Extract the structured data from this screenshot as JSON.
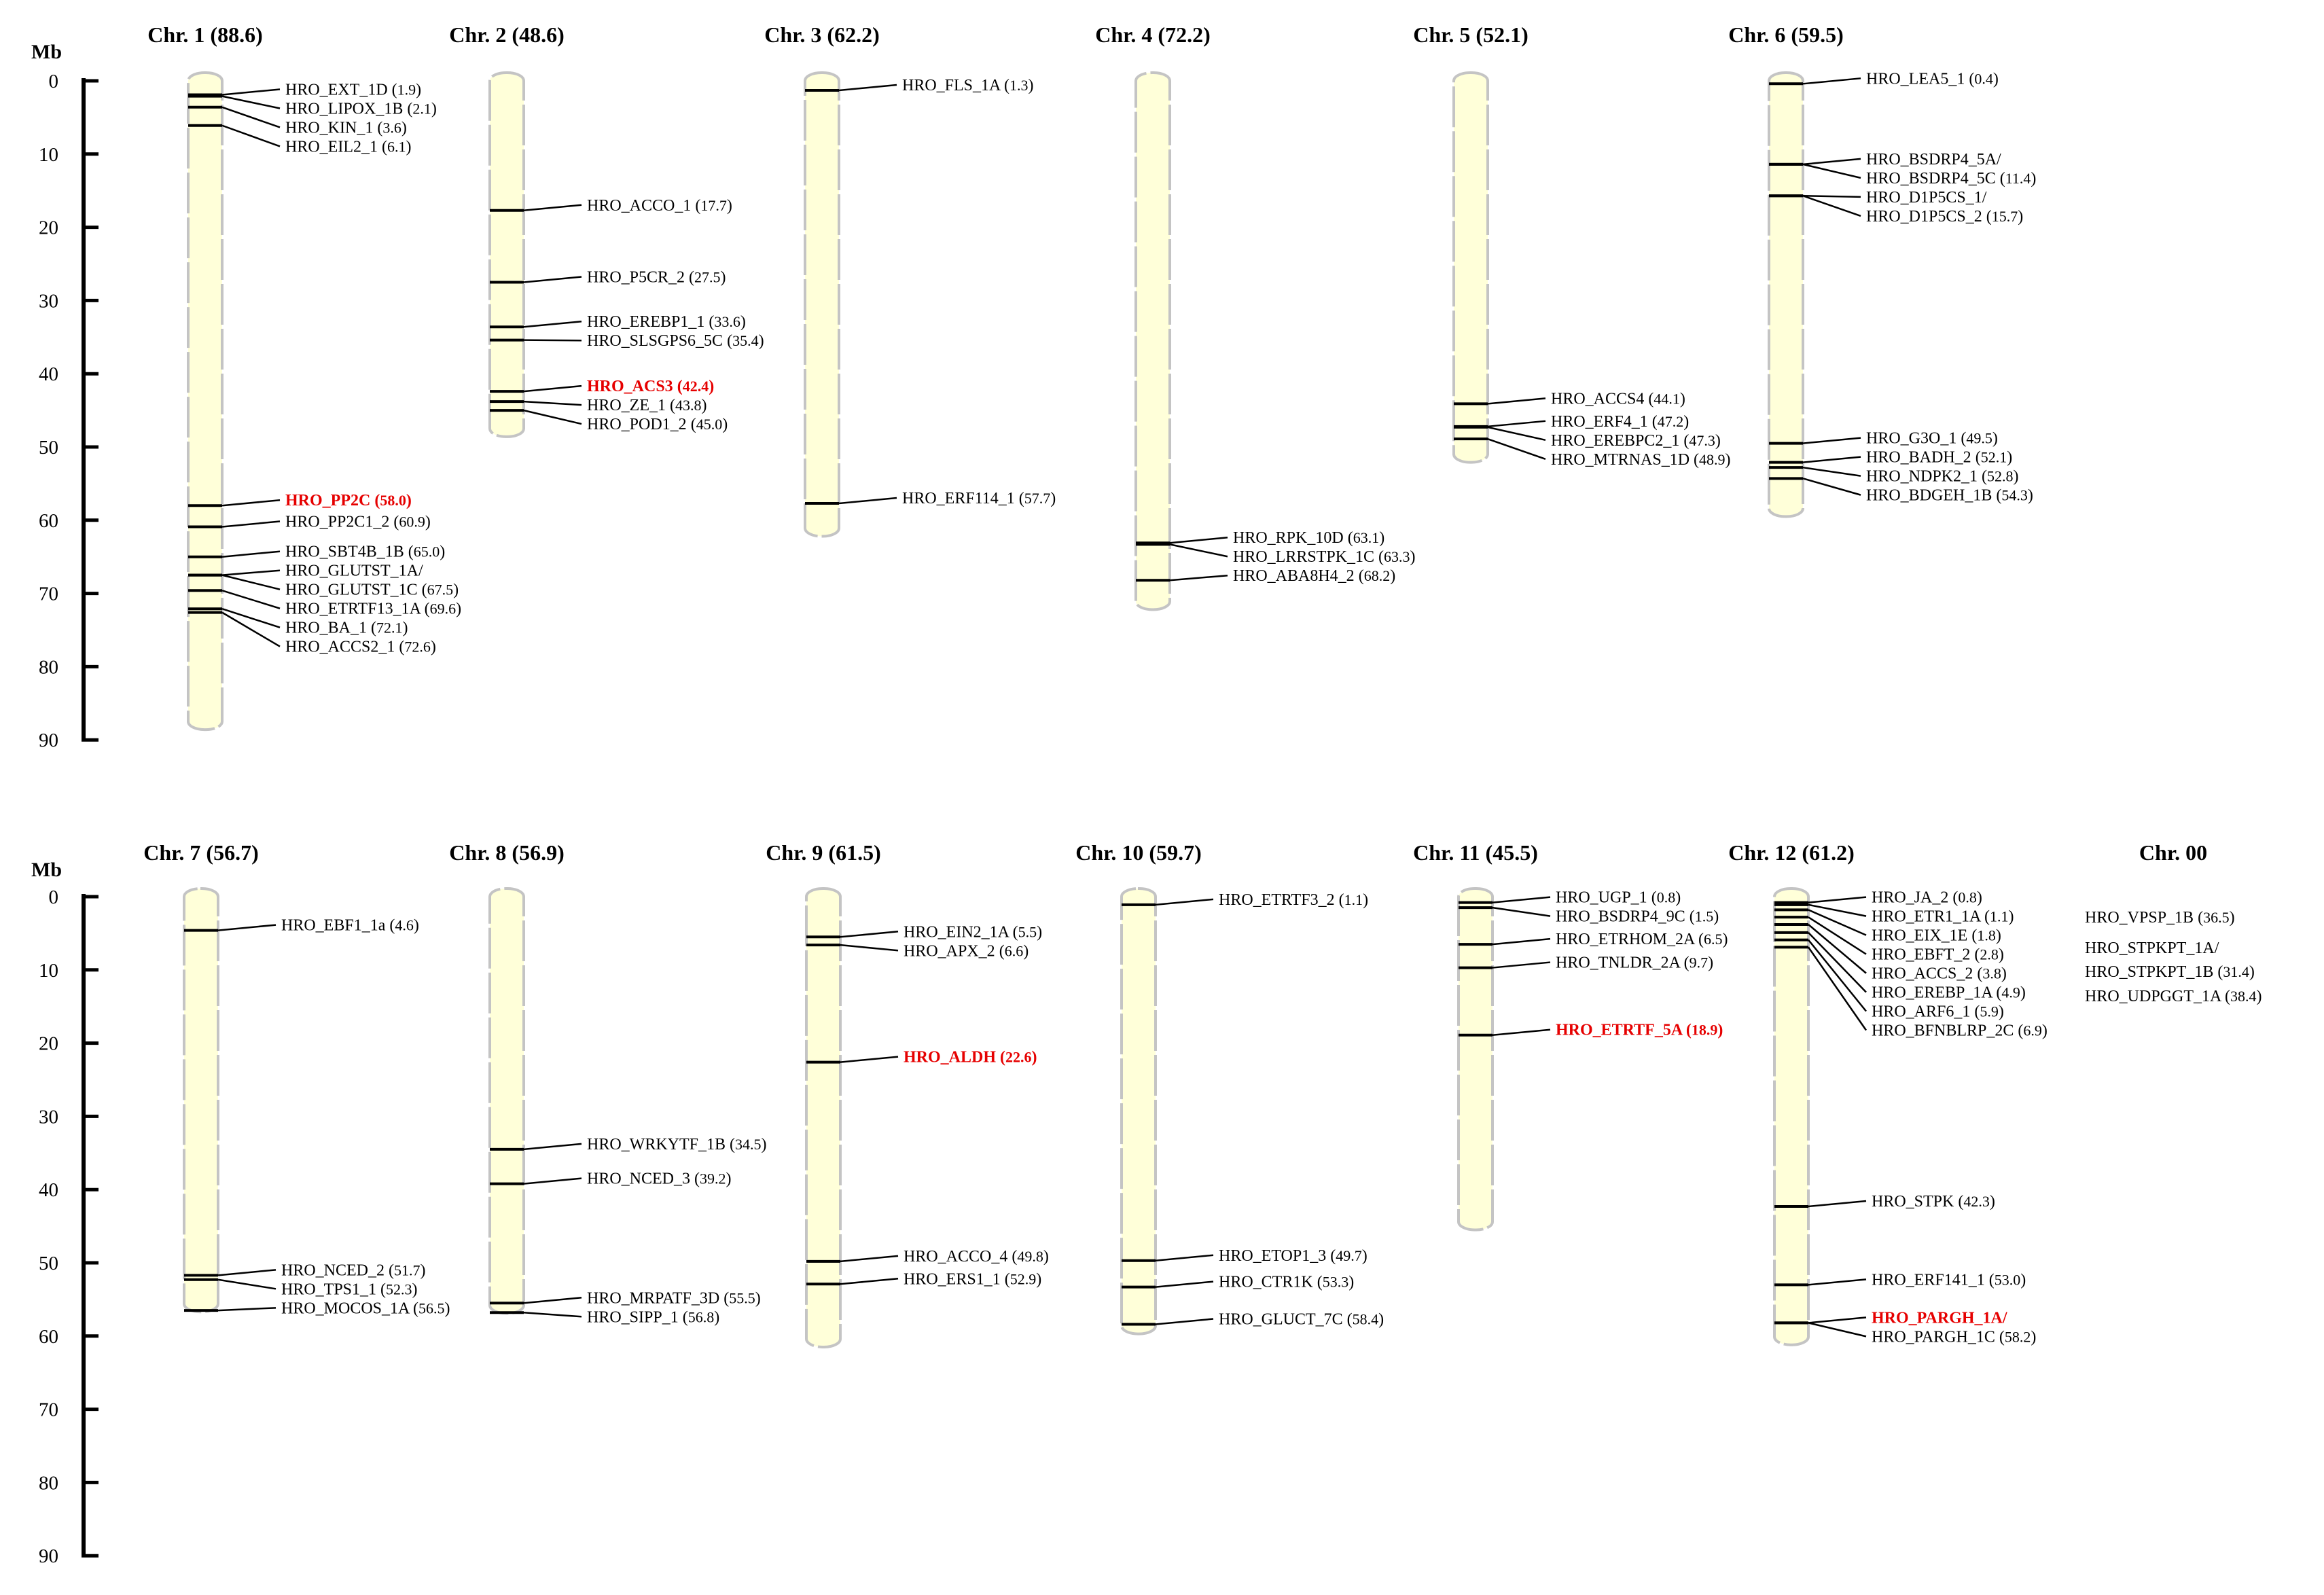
{
  "axis": {
    "unit": "Mb",
    "ticks": [
      "0",
      "10",
      "20",
      "30",
      "40",
      "50",
      "60",
      "70",
      "80",
      "90"
    ]
  },
  "highlight_color": "#e60000",
  "chromosome_fill": "#ffffd9",
  "rows": [
    {
      "chromosomes": [
        {
          "name": "Chr. 1",
          "size": "88.6",
          "length": 88.6,
          "genes": [
            {
              "name": "HRO_EXT_1D",
              "pos": "1.9",
              "mb": 1.9
            },
            {
              "name": "HRO_LIPOX_1B",
              "pos": "2.1",
              "mb": 2.1
            },
            {
              "name": "HRO_KIN_1",
              "pos": "3.6",
              "mb": 3.6
            },
            {
              "name": "HRO_EIL2_1",
              "pos": "6.1",
              "mb": 6.1
            },
            {
              "name": "HRO_PP2C",
              "pos": "58.0",
              "mb": 58.0,
              "highlight": true
            },
            {
              "name": "HRO_PP2C1_2",
              "pos": "60.9",
              "mb": 60.9
            },
            {
              "name": "HRO_SBT4B_1B",
              "pos": "65.0",
              "mb": 65.0
            },
            {
              "name": "HRO_GLUTST_1A/",
              "pos": "",
              "mb": 67.5
            },
            {
              "name": "HRO_GLUTST_1C",
              "pos": "67.5",
              "mb": 67.5
            },
            {
              "name": "HRO_ETRTF13_1A",
              "pos": "69.6",
              "mb": 69.6
            },
            {
              "name": "HRO_BA_1",
              "pos": "72.1",
              "mb": 72.1
            },
            {
              "name": "HRO_ACCS2_1",
              "pos": "72.6",
              "mb": 72.6
            }
          ]
        },
        {
          "name": "Chr. 2",
          "size": "48.6",
          "length": 48.6,
          "genes": [
            {
              "name": "HRO_ACCO_1",
              "pos": "17.7",
              "mb": 17.7
            },
            {
              "name": "HRO_P5CR_2",
              "pos": "27.5",
              "mb": 27.5
            },
            {
              "name": "HRO_EREBP1_1",
              "pos": "33.6",
              "mb": 33.6
            },
            {
              "name": "HRO_SLSGPS6_5C",
              "pos": "35.4",
              "mb": 35.4
            },
            {
              "name": "HRO_ACS3",
              "pos": "42.4",
              "mb": 42.4,
              "highlight": true
            },
            {
              "name": "HRO_ZE_1",
              "pos": "43.8",
              "mb": 43.8
            },
            {
              "name": "HRO_POD1_2",
              "pos": "45.0",
              "mb": 45.0
            }
          ]
        },
        {
          "name": "Chr. 3",
          "size": "62.2",
          "length": 62.2,
          "genes": [
            {
              "name": "HRO_FLS_1A",
              "pos": "1.3",
              "mb": 1.3
            },
            {
              "name": "HRO_ERF114_1",
              "pos": "57.7",
              "mb": 57.7
            }
          ]
        },
        {
          "name": "Chr. 4",
          "size": "72.2",
          "length": 72.2,
          "genes": [
            {
              "name": "HRO_RPK_10D",
              "pos": "63.1",
              "mb": 63.1
            },
            {
              "name": "HRO_LRRSTPK_1C",
              "pos": "63.3",
              "mb": 63.3
            },
            {
              "name": "HRO_ABA8H4_2",
              "pos": "68.2",
              "mb": 68.2
            }
          ]
        },
        {
          "name": "Chr. 5",
          "size": "52.1",
          "length": 52.1,
          "genes": [
            {
              "name": "HRO_ACCS4",
              "pos": "44.1",
              "mb": 44.1
            },
            {
              "name": "HRO_ERF4_1",
              "pos": "47.2",
              "mb": 47.2
            },
            {
              "name": "HRO_EREBPC2_1",
              "pos": "47.3",
              "mb": 47.3
            },
            {
              "name": "HRO_MTRNAS_1D",
              "pos": "48.9",
              "mb": 48.9
            }
          ]
        },
        {
          "name": "Chr. 6",
          "size": "59.5",
          "length": 59.5,
          "genes": [
            {
              "name": "HRO_LEA5_1",
              "pos": "0.4",
              "mb": 0.4
            },
            {
              "name": "HRO_BSDRP4_5A/",
              "pos": "",
              "mb": 11.4
            },
            {
              "name": "HRO_BSDRP4_5C",
              "pos": "11.4",
              "mb": 11.4
            },
            {
              "name": "HRO_D1P5CS_1/",
              "pos": "",
              "mb": 15.7
            },
            {
              "name": "HRO_D1P5CS_2",
              "pos": "15.7",
              "mb": 15.7
            },
            {
              "name": "HRO_G3O_1",
              "pos": "49.5",
              "mb": 49.5
            },
            {
              "name": "HRO_BADH_2",
              "pos": "52.1",
              "mb": 52.1
            },
            {
              "name": "HRO_NDPK2_1",
              "pos": "52.8",
              "mb": 52.8
            },
            {
              "name": "HRO_BDGEH_1B",
              "pos": "54.3",
              "mb": 54.3
            }
          ]
        }
      ]
    },
    {
      "chromosomes": [
        {
          "name": "Chr. 7",
          "size": "56.7",
          "length": 56.7,
          "genes": [
            {
              "name": "HRO_EBF1_1a",
              "pos": "4.6",
              "mb": 4.6
            },
            {
              "name": "HRO_NCED_2",
              "pos": "51.7",
              "mb": 51.7
            },
            {
              "name": "HRO_TPS1_1",
              "pos": "52.3",
              "mb": 52.3
            },
            {
              "name": "HRO_MOCOS_1A",
              "pos": "56.5",
              "mb": 56.5
            }
          ]
        },
        {
          "name": "Chr. 8",
          "size": "56.9",
          "length": 56.9,
          "genes": [
            {
              "name": "HRO_WRKYTF_1B",
              "pos": "34.5",
              "mb": 34.5
            },
            {
              "name": "HRO_NCED_3",
              "pos": "39.2",
              "mb": 39.2
            },
            {
              "name": "HRO_MRPATF_3D",
              "pos": "55.5",
              "mb": 55.5
            },
            {
              "name": "HRO_SIPP_1",
              "pos": "56.8",
              "mb": 56.8
            }
          ]
        },
        {
          "name": "Chr. 9",
          "size": "61.5",
          "length": 61.5,
          "genes": [
            {
              "name": "HRO_EIN2_1A",
              "pos": "5.5",
              "mb": 5.5
            },
            {
              "name": "HRO_APX_2",
              "pos": "6.6",
              "mb": 6.6
            },
            {
              "name": "HRO_ALDH",
              "pos": "22.6",
              "mb": 22.6,
              "highlight": true
            },
            {
              "name": "HRO_ACCO_4",
              "pos": "49.8",
              "mb": 49.8
            },
            {
              "name": "HRO_ERS1_1",
              "pos": "52.9",
              "mb": 52.9
            }
          ]
        },
        {
          "name": "Chr. 10",
          "size": "59.7",
          "length": 59.7,
          "genes": [
            {
              "name": "HRO_ETRTF3_2",
              "pos": "1.1",
              "mb": 1.1
            },
            {
              "name": "HRO_ETOP1_3",
              "pos": "49.7",
              "mb": 49.7
            },
            {
              "name": "HRO_CTR1K",
              "pos": "53.3",
              "mb": 53.3
            },
            {
              "name": "HRO_GLUCT_7C",
              "pos": "58.4",
              "mb": 58.4
            }
          ]
        },
        {
          "name": "Chr. 11",
          "size": "45.5",
          "length": 45.5,
          "genes": [
            {
              "name": "HRO_UGP_1",
              "pos": "0.8",
              "mb": 0.8
            },
            {
              "name": "HRO_BSDRP4_9C",
              "pos": "1.5",
              "mb": 1.5
            },
            {
              "name": "HRO_ETRHOM_2A",
              "pos": "6.5",
              "mb": 6.5
            },
            {
              "name": "HRO_TNLDR_2A",
              "pos": "9.7",
              "mb": 9.7
            },
            {
              "name": "HRO_ETRTF_5A",
              "pos": "18.9",
              "mb": 18.9,
              "highlight": true
            }
          ]
        },
        {
          "name": "Chr. 12",
          "size": "61.2",
          "length": 61.2,
          "genes": [
            {
              "name": "HRO_JA_2",
              "pos": "0.8",
              "mb": 0.8
            },
            {
              "name": "HRO_ETR1_1A",
              "pos": "1.1",
              "mb": 1.1
            },
            {
              "name": "HRO_EIX_1E",
              "pos": "1.8",
              "mb": 1.8
            },
            {
              "name": "HRO_EBFT_2",
              "pos": "2.8",
              "mb": 2.8
            },
            {
              "name": "HRO_ACCS_2",
              "pos": "3.8",
              "mb": 3.8
            },
            {
              "name": "HRO_EREBP_1A",
              "pos": "4.9",
              "mb": 4.9
            },
            {
              "name": "HRO_ARF6_1",
              "pos": "5.9",
              "mb": 5.9
            },
            {
              "name": "HRO_BFNBLRP_2C",
              "pos": "6.9",
              "mb": 6.9
            },
            {
              "name": "HRO_STPK",
              "pos": "42.3",
              "mb": 42.3
            },
            {
              "name": "HRO_ERF141_1",
              "pos": "53.0",
              "mb": 53.0
            },
            {
              "name": "HRO_PARGH_1A/",
              "pos": "",
              "mb": 58.2,
              "highlight": true
            },
            {
              "name": "HRO_PARGH_1C",
              "pos": "58.2",
              "mb": 58.2
            }
          ]
        }
      ],
      "unplaced": {
        "name": "Chr. 00",
        "genes": [
          {
            "name": "HRO_VPSP_1B",
            "pos": "36.5"
          },
          {
            "name": "HRO_STPKPT_1A/",
            "pos": ""
          },
          {
            "name": "HRO_STPKPT_1B",
            "pos": "31.4"
          },
          {
            "name": "HRO_UDPGGT_1A",
            "pos": "38.4"
          }
        ]
      }
    }
  ]
}
